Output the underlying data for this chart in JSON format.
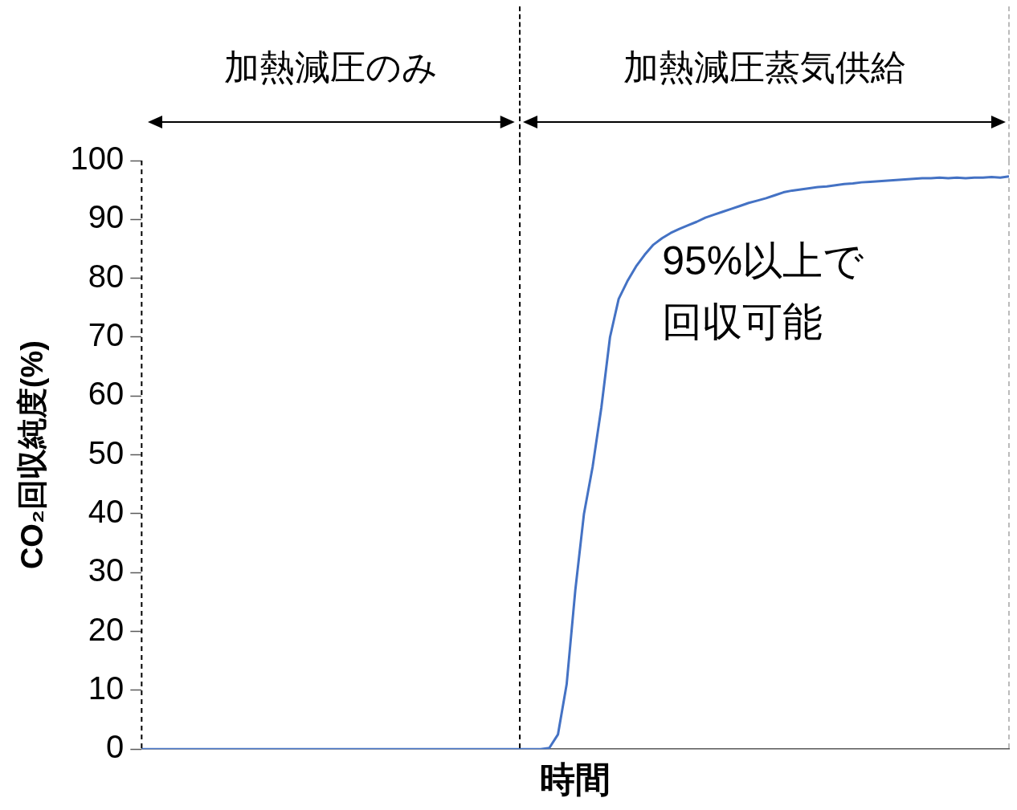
{
  "chart_data": {
    "type": "line",
    "xlabel": "時間",
    "ylabel": "CO₂回収純度(%)",
    "color": "#4472c4",
    "categories": [
      null,
      null,
      null,
      null,
      null,
      null,
      null,
      null,
      null,
      null,
      null,
      null,
      null,
      null,
      null,
      null,
      null,
      null,
      null,
      null,
      null,
      null,
      null,
      null,
      null,
      null,
      null,
      null,
      null,
      null,
      null,
      null,
      null,
      null,
      null,
      null,
      null,
      null,
      null,
      null,
      null,
      null,
      null,
      null,
      null,
      null,
      null,
      null,
      null,
      null,
      null,
      null,
      null,
      null,
      null,
      null,
      null,
      null,
      null,
      null,
      null,
      null,
      null,
      null,
      null,
      null,
      null,
      null,
      null,
      null,
      null,
      null,
      null,
      null,
      null,
      null,
      null,
      null,
      null,
      null,
      null,
      null,
      null,
      null,
      null,
      null,
      null,
      null,
      null,
      null,
      null,
      null,
      null,
      null,
      null,
      null,
      null,
      null,
      null,
      null,
      null
    ],
    "values": [
      0,
      0,
      0,
      0,
      0,
      0,
      0,
      0,
      0,
      0,
      0,
      0,
      0,
      0,
      0,
      0,
      0,
      0,
      0,
      0,
      0,
      0,
      0,
      0,
      0,
      0,
      0,
      0,
      0,
      0,
      0,
      0,
      0,
      0,
      0,
      0,
      0,
      0,
      0,
      0,
      0,
      0,
      0,
      0,
      0,
      0,
      0,
      0.2,
      2.5,
      11,
      27,
      40,
      48,
      58,
      70,
      76.5,
      79.5,
      82,
      84,
      85.7,
      86.8,
      87.7,
      88.4,
      89,
      89.6,
      90.3,
      90.8,
      91.3,
      91.8,
      92.3,
      92.8,
      93.2,
      93.6,
      94.1,
      94.6,
      94.9,
      95.1,
      95.3,
      95.5,
      95.6,
      95.8,
      96,
      96.1,
      96.3,
      96.4,
      96.5,
      96.6,
      96.7,
      96.8,
      96.9,
      97,
      97,
      97.1,
      97,
      97.1,
      97,
      97.1,
      97.1,
      97.2,
      97.1,
      97.3
    ],
    "ylim": [
      0,
      100
    ],
    "yticks": [
      0,
      10,
      20,
      30,
      40,
      50,
      60,
      70,
      80,
      90,
      100
    ],
    "grid": false,
    "legend": false,
    "marker": "none",
    "line_style": "solid",
    "tick_labels": "y",
    "annotations": [
      "加熱減圧のみ",
      "加熱減圧蒸気供給",
      "95%以上で回収可能"
    ]
  }
}
